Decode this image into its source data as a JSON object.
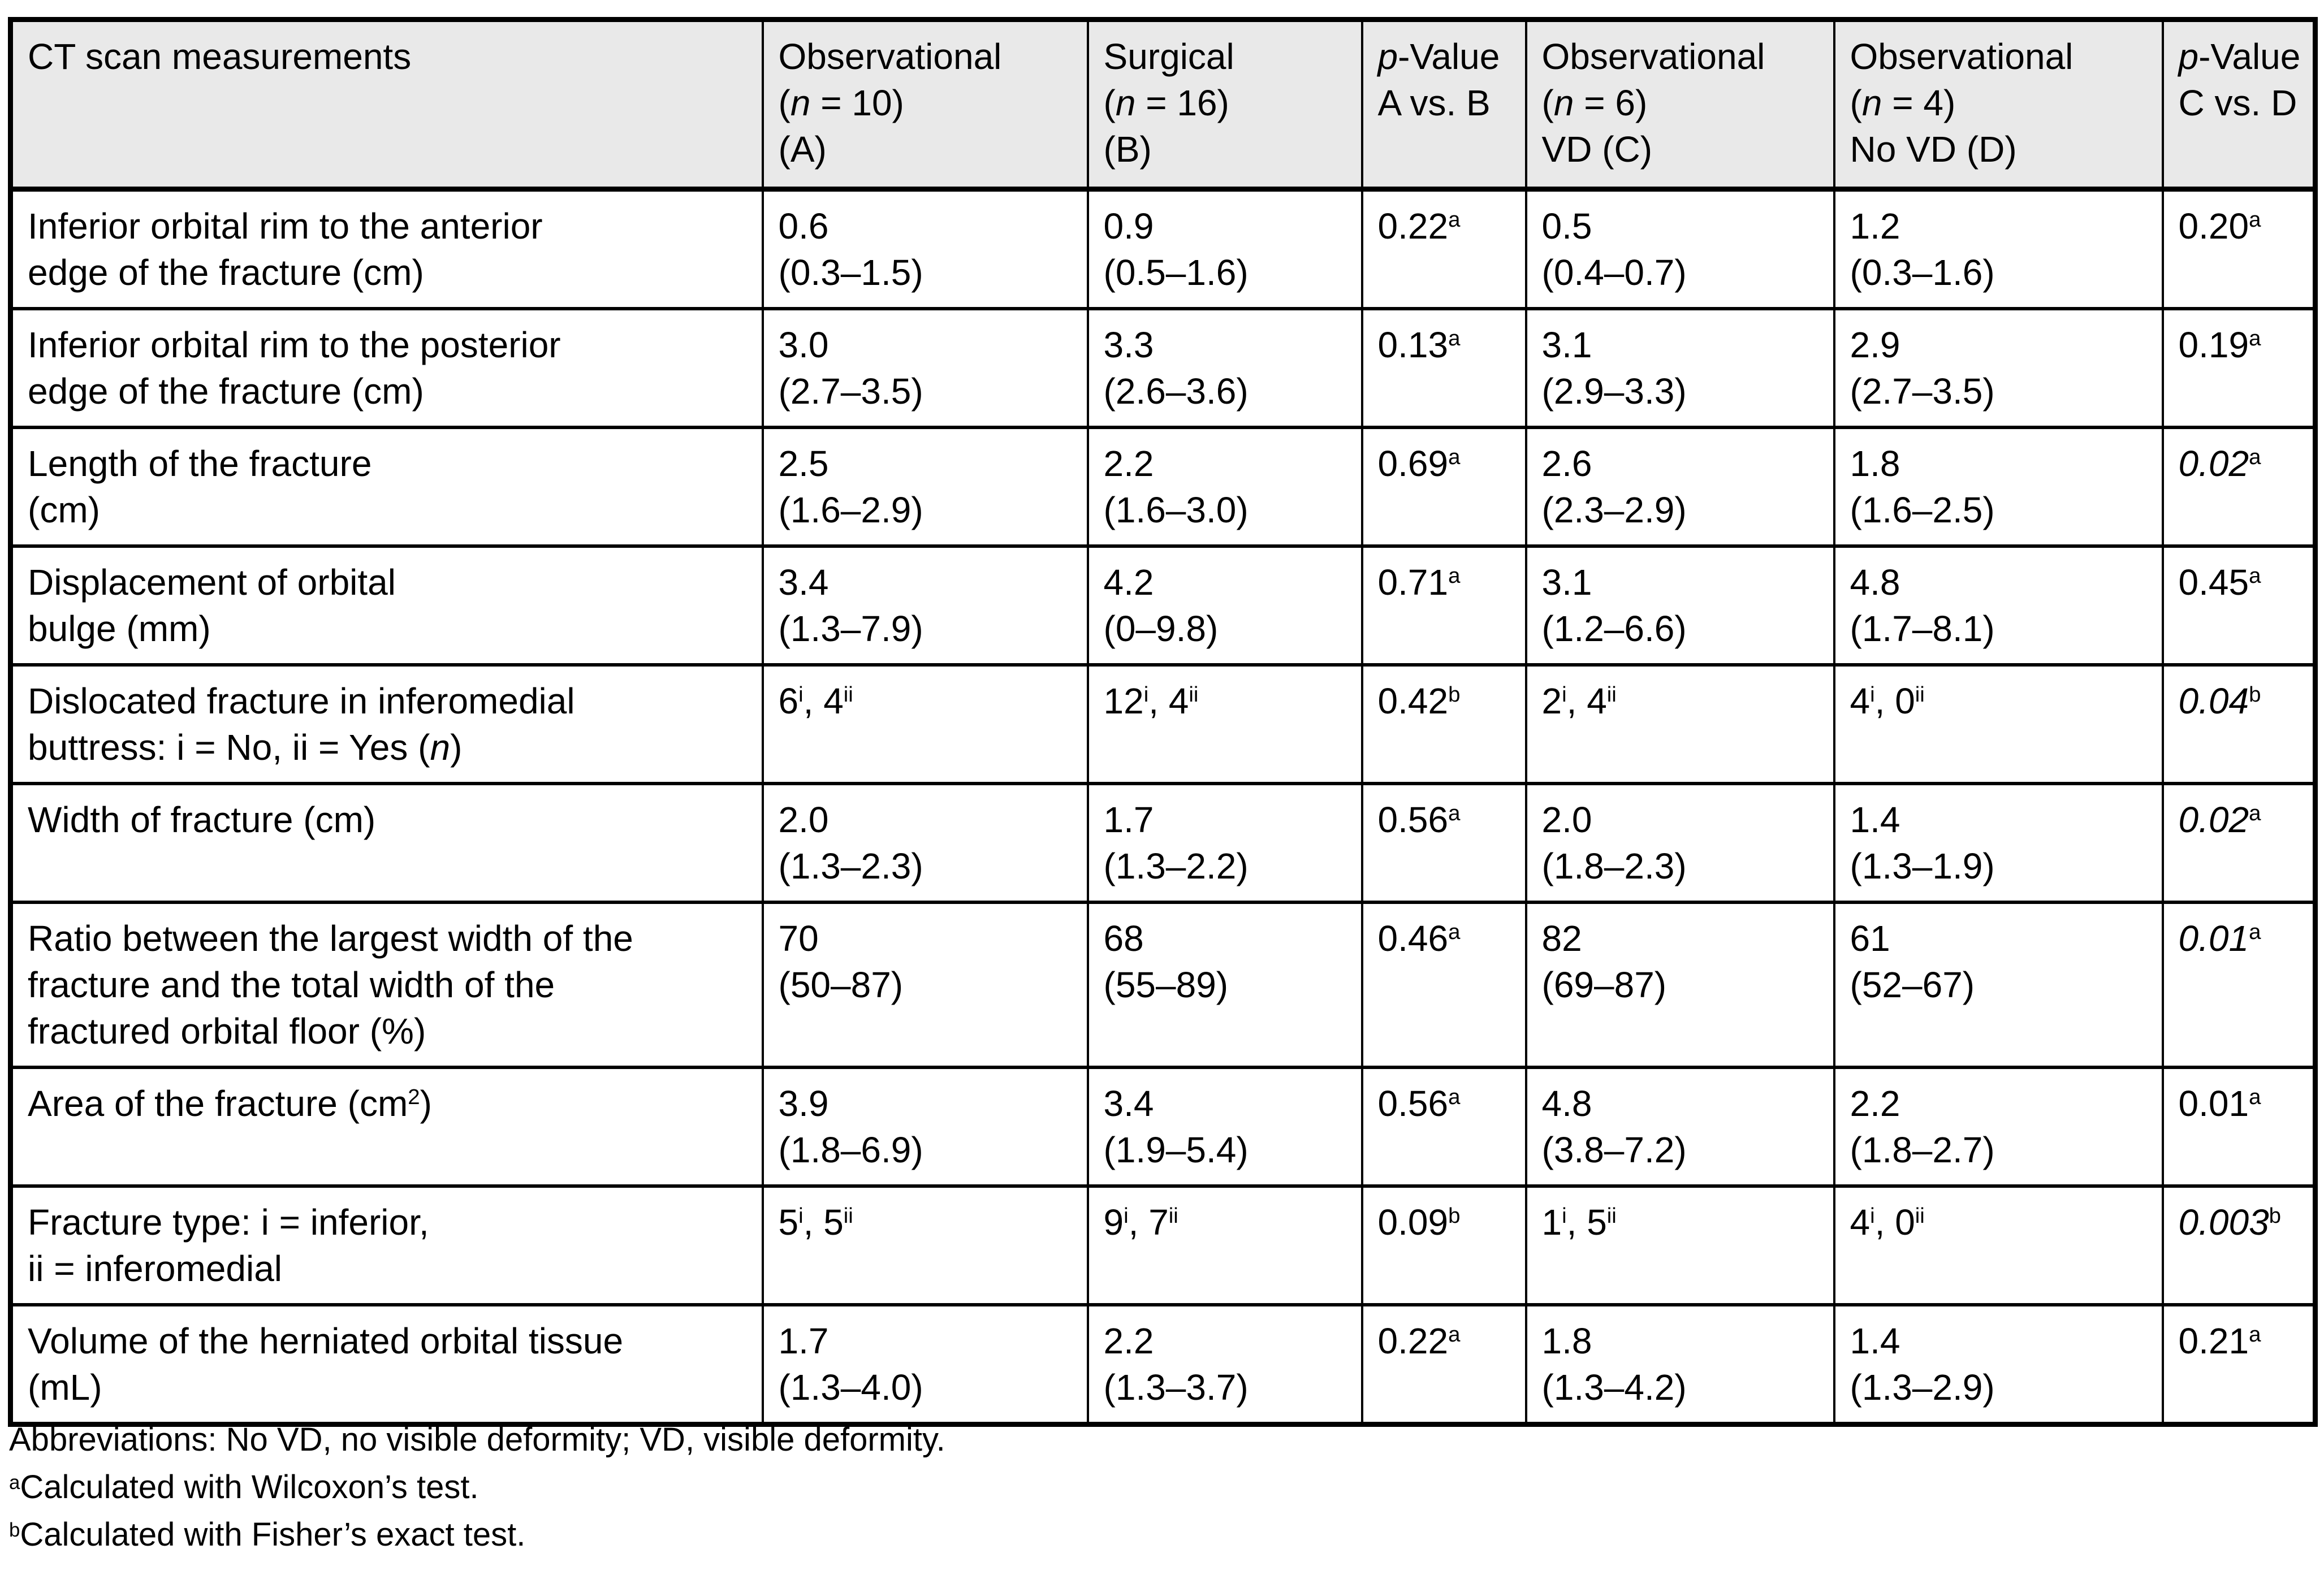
{
  "table": {
    "columns": [
      {
        "id": "measurements",
        "lines": [
          "CT scan measurements"
        ]
      },
      {
        "id": "observational-a",
        "lines": [
          "Observational",
          [
            {
              "text": "("
            },
            {
              "text": "n",
              "italic": true
            },
            {
              "text": " = 10)"
            }
          ],
          "(A)"
        ]
      },
      {
        "id": "surgical-b",
        "lines": [
          "Surgical",
          [
            {
              "text": "("
            },
            {
              "text": "n",
              "italic": true
            },
            {
              "text": " = 16)"
            }
          ],
          "(B)"
        ]
      },
      {
        "id": "p-value-ab",
        "lines": [
          [
            {
              "text": "p",
              "italic": true
            },
            {
              "text": "-Value"
            }
          ],
          "A vs. B"
        ]
      },
      {
        "id": "observational-vd-c",
        "lines": [
          "Observational",
          [
            {
              "text": "("
            },
            {
              "text": "n",
              "italic": true
            },
            {
              "text": " = 6)"
            }
          ],
          "VD (C)"
        ]
      },
      {
        "id": "observational-novd-d",
        "lines": [
          "Observational",
          [
            {
              "text": "("
            },
            {
              "text": "n",
              "italic": true
            },
            {
              "text": " = 4)"
            }
          ],
          "No VD (D)"
        ]
      },
      {
        "id": "p-value-cd",
        "lines": [
          [
            {
              "text": "p",
              "italic": true
            },
            {
              "text": "-Value"
            }
          ],
          "C vs. D"
        ]
      }
    ],
    "rows": [
      {
        "cells": [
          [
            "Inferior orbital rim to the anterior",
            "edge of the fracture (cm)"
          ],
          [
            "0.6",
            "(0.3–1.5)"
          ],
          [
            "0.9",
            "(0.5–1.6)"
          ],
          [
            [
              {
                "text": "0.22"
              },
              {
                "text": "a",
                "sup": true
              }
            ]
          ],
          [
            "0.5",
            "(0.4–0.7)"
          ],
          [
            "1.2",
            "(0.3–1.6)"
          ],
          [
            [
              {
                "text": "0.20"
              },
              {
                "text": "a",
                "sup": true
              }
            ]
          ]
        ]
      },
      {
        "cells": [
          [
            "Inferior orbital rim to the posterior",
            "edge of the fracture (cm)"
          ],
          [
            "3.0",
            "(2.7–3.5)"
          ],
          [
            "3.3",
            "(2.6–3.6)"
          ],
          [
            [
              {
                "text": "0.13"
              },
              {
                "text": "a",
                "sup": true
              }
            ]
          ],
          [
            "3.1",
            "(2.9–3.3)"
          ],
          [
            "2.9",
            "(2.7–3.5)"
          ],
          [
            [
              {
                "text": "0.19"
              },
              {
                "text": "a",
                "sup": true
              }
            ]
          ]
        ]
      },
      {
        "cells": [
          [
            "Length of the fracture",
            "(cm)"
          ],
          [
            "2.5",
            "(1.6–2.9)"
          ],
          [
            "2.2",
            "(1.6–3.0)"
          ],
          [
            [
              {
                "text": "0.69"
              },
              {
                "text": "a",
                "sup": true
              }
            ]
          ],
          [
            "2.6",
            "(2.3–2.9)"
          ],
          [
            "1.8",
            "(1.6–2.5)"
          ],
          [
            [
              {
                "text": "0.02",
                "italic": true
              },
              {
                "text": "a",
                "sup": true
              }
            ]
          ]
        ]
      },
      {
        "cells": [
          [
            "Displacement of orbital",
            "bulge (mm)"
          ],
          [
            "3.4",
            "(1.3–7.9)"
          ],
          [
            "4.2",
            "(0–9.8)"
          ],
          [
            [
              {
                "text": "0.71"
              },
              {
                "text": "a",
                "sup": true
              }
            ]
          ],
          [
            "3.1",
            "(1.2–6.6)"
          ],
          [
            "4.8",
            "(1.7–8.1)"
          ],
          [
            [
              {
                "text": "0.45"
              },
              {
                "text": "a",
                "sup": true
              }
            ]
          ]
        ]
      },
      {
        "cells": [
          [
            "Dislocated fracture in inferomedial",
            [
              {
                "text": "buttress: i = No, ii = Yes ("
              },
              {
                "text": "n",
                "italic": true
              },
              {
                "text": ")"
              }
            ]
          ],
          [
            [
              {
                "text": "6"
              },
              {
                "text": "i",
                "sup": true
              },
              {
                "text": ", 4"
              },
              {
                "text": "ii",
                "sup": true
              }
            ]
          ],
          [
            [
              {
                "text": "12"
              },
              {
                "text": "i",
                "sup": true
              },
              {
                "text": ", 4"
              },
              {
                "text": "ii",
                "sup": true
              }
            ]
          ],
          [
            [
              {
                "text": "0.42"
              },
              {
                "text": "b",
                "sup": true
              }
            ]
          ],
          [
            [
              {
                "text": "2"
              },
              {
                "text": "i",
                "sup": true
              },
              {
                "text": ", 4"
              },
              {
                "text": "ii",
                "sup": true
              }
            ]
          ],
          [
            [
              {
                "text": "4"
              },
              {
                "text": "i",
                "sup": true
              },
              {
                "text": ", 0"
              },
              {
                "text": "ii",
                "sup": true
              }
            ]
          ],
          [
            [
              {
                "text": "0.04",
                "italic": true
              },
              {
                "text": "b",
                "sup": true
              }
            ]
          ]
        ]
      },
      {
        "cells": [
          [
            "Width of fracture (cm)"
          ],
          [
            "2.0",
            "(1.3–2.3)"
          ],
          [
            "1.7",
            "(1.3–2.2)"
          ],
          [
            [
              {
                "text": "0.56"
              },
              {
                "text": "a",
                "sup": true
              }
            ]
          ],
          [
            "2.0",
            "(1.8–2.3)"
          ],
          [
            "1.4",
            "(1.3–1.9)"
          ],
          [
            [
              {
                "text": "0.02",
                "italic": true
              },
              {
                "text": "a",
                "sup": true
              }
            ]
          ]
        ]
      },
      {
        "cells": [
          [
            "Ratio between the largest width of the",
            "fracture and the total width of the",
            "fractured orbital floor (%)"
          ],
          [
            "70",
            "(50–87)"
          ],
          [
            "68",
            "(55–89)"
          ],
          [
            [
              {
                "text": "0.46"
              },
              {
                "text": "a",
                "sup": true
              }
            ]
          ],
          [
            "82",
            "(69–87)"
          ],
          [
            "61",
            "(52–67)"
          ],
          [
            [
              {
                "text": "0.01",
                "italic": true
              },
              {
                "text": "a",
                "sup": true
              }
            ]
          ]
        ]
      },
      {
        "cells": [
          [
            [
              {
                "text": "Area of the fracture (cm"
              },
              {
                "text": "2",
                "sup": true
              },
              {
                "text": ")"
              }
            ]
          ],
          [
            "3.9",
            "(1.8–6.9)"
          ],
          [
            "3.4",
            "(1.9–5.4)"
          ],
          [
            [
              {
                "text": "0.56"
              },
              {
                "text": "a",
                "sup": true
              }
            ]
          ],
          [
            "4.8",
            "(3.8–7.2)"
          ],
          [
            "2.2",
            "(1.8–2.7)"
          ],
          [
            [
              {
                "text": "0.01"
              },
              {
                "text": "a",
                "sup": true
              }
            ]
          ]
        ]
      },
      {
        "cells": [
          [
            "Fracture type: i = inferior,",
            "ii = inferomedial"
          ],
          [
            [
              {
                "text": "5"
              },
              {
                "text": "i",
                "sup": true
              },
              {
                "text": ", 5"
              },
              {
                "text": "ii",
                "sup": true
              }
            ]
          ],
          [
            [
              {
                "text": "9"
              },
              {
                "text": "i",
                "sup": true
              },
              {
                "text": ", 7"
              },
              {
                "text": "ii",
                "sup": true
              }
            ]
          ],
          [
            [
              {
                "text": "0.09"
              },
              {
                "text": "b",
                "sup": true
              }
            ]
          ],
          [
            [
              {
                "text": "1"
              },
              {
                "text": "i",
                "sup": true
              },
              {
                "text": ", 5"
              },
              {
                "text": "ii",
                "sup": true
              }
            ]
          ],
          [
            [
              {
                "text": "4"
              },
              {
                "text": "i",
                "sup": true
              },
              {
                "text": ", 0"
              },
              {
                "text": "ii",
                "sup": true
              }
            ]
          ],
          [
            [
              {
                "text": "0.003",
                "italic": true
              },
              {
                "text": "b",
                "sup": true
              }
            ]
          ]
        ]
      },
      {
        "cells": [
          [
            "Volume of the herniated orbital tissue",
            "(mL)"
          ],
          [
            "1.7",
            "(1.3–4.0)"
          ],
          [
            "2.2",
            "(1.3–3.7)"
          ],
          [
            [
              {
                "text": "0.22"
              },
              {
                "text": "a",
                "sup": true
              }
            ]
          ],
          [
            "1.8",
            "(1.3–4.2)"
          ],
          [
            "1.4",
            "(1.3–2.9)"
          ],
          [
            [
              {
                "text": "0.21"
              },
              {
                "text": "a",
                "sup": true
              }
            ]
          ]
        ]
      }
    ],
    "footnotes": [
      [
        "Abbreviations: No VD, no visible deformity; VD, visible deformity."
      ],
      [
        [
          {
            "text": "a",
            "sup": true
          },
          {
            "text": "Calculated with Wilcoxon’s test."
          }
        ]
      ],
      [
        [
          {
            "text": "b",
            "sup": true
          },
          {
            "text": "Calculated with Fisher’s exact test."
          }
        ]
      ]
    ]
  }
}
